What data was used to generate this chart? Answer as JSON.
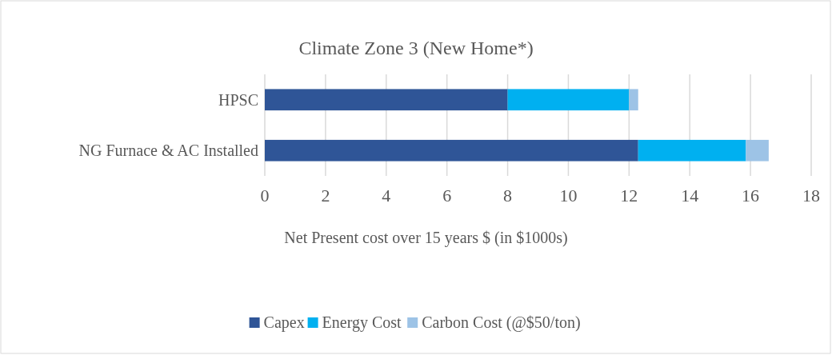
{
  "chart_data": {
    "type": "bar",
    "orientation": "horizontal",
    "stacked": true,
    "title": "Climate Zone 3 (New Home*)",
    "categories": [
      "HPSC",
      "NG Furnace & AC Installed"
    ],
    "series": [
      {
        "name": "Capex",
        "color": "#2f5597",
        "values": [
          8,
          12.3
        ]
      },
      {
        "name": "Energy Cost",
        "color": "#00b0f0",
        "values": [
          4,
          3.55
        ]
      },
      {
        "name": "Carbon Cost (@$50/ton)",
        "color": "#9dc3e6",
        "values": [
          0.3,
          0.75
        ]
      }
    ],
    "xlabel": "Net Present cost over 15 years $ (in $1000s)",
    "xlim": [
      0,
      18
    ],
    "xticks": [
      0,
      2,
      4,
      6,
      8,
      10,
      12,
      14,
      16,
      18
    ],
    "grid": "x",
    "legend": "bottom"
  }
}
